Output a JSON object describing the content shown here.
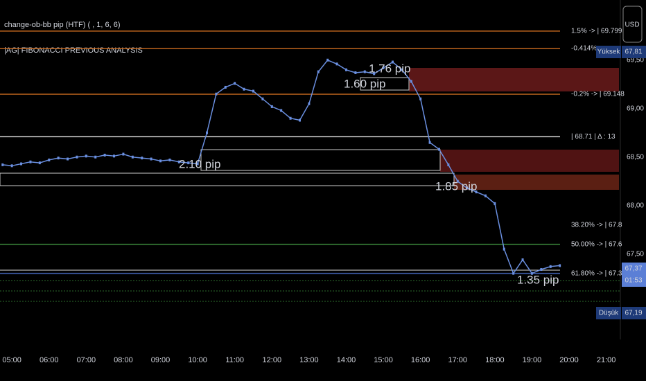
{
  "chart_data": {
    "type": "line",
    "title": "change-ob-bb pip (HTF) ( , 1, 6, 6)",
    "subtitle": "|AG| FIBONACCI PREVIOUS ANALYSIS",
    "currency": "USD",
    "color": "#6a8fe0",
    "x": [
      4.75,
      5,
      5.25,
      5.5,
      5.75,
      6,
      6.25,
      6.5,
      6.75,
      7,
      7.25,
      7.5,
      7.75,
      8,
      8.25,
      8.5,
      8.75,
      9,
      9.25,
      9.5,
      9.75,
      10,
      10.25,
      10.5,
      10.75,
      11,
      11.25,
      11.5,
      11.75,
      12,
      12.25,
      12.5,
      12.75,
      13,
      13.25,
      13.5,
      13.75,
      14,
      14.25,
      14.5,
      14.75,
      15,
      15.25,
      15.5,
      15.75,
      16,
      16.25,
      16.5,
      16.75,
      17,
      17.25,
      17.5,
      17.75,
      18,
      18.25,
      18.5,
      18.75,
      19,
      19.25,
      19.5,
      19.75
    ],
    "values": [
      68.42,
      68.41,
      68.43,
      68.45,
      68.44,
      68.47,
      68.49,
      68.48,
      68.5,
      68.51,
      68.5,
      68.52,
      68.51,
      68.53,
      68.5,
      68.49,
      68.48,
      68.46,
      68.47,
      68.45,
      68.44,
      68.43,
      68.75,
      69.15,
      69.22,
      69.26,
      69.2,
      69.18,
      69.1,
      69.02,
      68.98,
      68.9,
      68.88,
      69.05,
      69.38,
      69.5,
      69.46,
      69.4,
      69.37,
      69.38,
      69.36,
      69.42,
      69.48,
      69.4,
      69.28,
      69.1,
      68.65,
      68.58,
      68.42,
      68.25,
      68.18,
      68.14,
      68.1,
      68.02,
      67.55,
      67.3,
      67.44,
      67.3,
      67.34,
      67.37,
      67.38
    ],
    "xlim": [
      4.68,
      21.38
    ],
    "xticks": [
      {
        "value": 5,
        "label": "05:00"
      },
      {
        "value": 6,
        "label": "06:00"
      },
      {
        "value": 7,
        "label": "07:00"
      },
      {
        "value": 8,
        "label": "08:00"
      },
      {
        "value": 9,
        "label": "09:00"
      },
      {
        "value": 10,
        "label": "10:00"
      },
      {
        "value": 11,
        "label": "11:00"
      },
      {
        "value": 12,
        "label": "12:00"
      },
      {
        "value": 13,
        "label": "13:00"
      },
      {
        "value": 14,
        "label": "14:00"
      },
      {
        "value": 15,
        "label": "15:00"
      },
      {
        "value": 16,
        "label": "16:00"
      },
      {
        "value": 17,
        "label": "17:00"
      },
      {
        "value": 18,
        "label": "18:00"
      },
      {
        "value": 19,
        "label": "19:00"
      },
      {
        "value": 20,
        "label": "20:00"
      },
      {
        "value": 21,
        "label": "21:00"
      }
    ],
    "ylim": [
      66.69,
      70.12
    ],
    "yticks": [
      {
        "value": 67.5,
        "label": "67,50"
      },
      {
        "value": 68,
        "label": "68,00"
      },
      {
        "value": 68.5,
        "label": "68,50"
      },
      {
        "value": 69,
        "label": "69,00"
      },
      {
        "value": 69.5,
        "label": "69,50"
      }
    ],
    "grid": false,
    "levels": [
      {
        "value": 69.799,
        "label": "1.5% -> | 69.799",
        "color": "#e07b2a"
      },
      {
        "value": 69.62,
        "label": "-0.414% ->",
        "color": "#e07b2a"
      },
      {
        "value": 69.148,
        "label": "-0.2% -> | 69.148",
        "color": "#e07b2a"
      },
      {
        "value": 68.71,
        "label": "| 68.71 | Δ : 13",
        "color": "#e6e6e6"
      },
      {
        "value": 67.8,
        "label": "38.20% -> | 67.8",
        "color": "#e07b2a"
      },
      {
        "value": 67.6,
        "label": "50.00% -> | 67.6",
        "color": "#e07b2a"
      },
      {
        "value": 67.3,
        "label": "61.80% -> | 67.3",
        "color": "#e07b2a"
      }
    ],
    "line_colors": [
      "#c0651e",
      "#c0651e",
      "#c0651e",
      "#d8d8d8",
      "#000000",
      "#3d8a3d",
      "#3f5fb0"
    ],
    "annotations": [
      "2.10 pip",
      "1.60 pip",
      "1.76 pip",
      "1.85 pip",
      "1.35 pip"
    ],
    "badges": [
      {
        "name": "Yüksek",
        "label": "67,81"
      },
      {
        "label": "67,37"
      },
      {
        "label": "01:53"
      },
      {
        "name": "Düşük",
        "label": "67,19"
      }
    ]
  }
}
